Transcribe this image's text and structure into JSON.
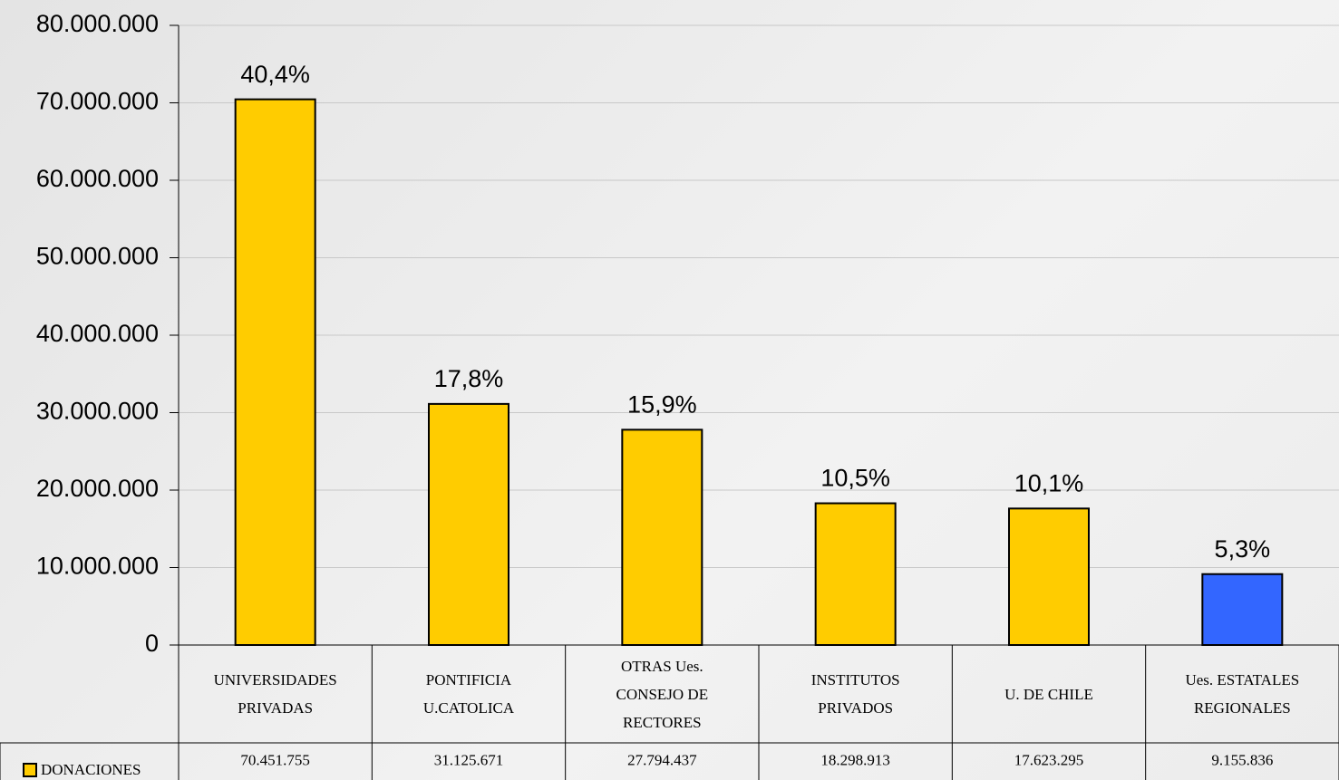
{
  "chart_data": {
    "type": "bar",
    "categories": [
      "UNIVERSIDADES PRIVADAS",
      "PONTIFICIA U.CATOLICA",
      "OTRAS Ues. CONSEJO DE RECTORES",
      "INSTITUTOS PRIVADOS",
      "U. DE CHILE",
      "Ues. ESTATALES REGIONALES"
    ],
    "series": [
      {
        "name": "DONACIONES",
        "color": "#ffcc00",
        "values": [
          70451755,
          31125671,
          27794437,
          18298913,
          17623295,
          9155836
        ],
        "value_labels": [
          "70.451.755",
          "31.125.671",
          "27.794.437",
          "18.298.913",
          "17.623.295",
          "9.155.836"
        ],
        "share_labels": [
          "40,4%",
          "17,8%",
          "15,9%",
          "10,5%",
          "10,1%",
          "5,3%"
        ],
        "colors": [
          "#ffcc00",
          "#ffcc00",
          "#ffcc00",
          "#ffcc00",
          "#ffcc00",
          "#3366ff"
        ]
      }
    ],
    "ylim": [
      0,
      80000000
    ],
    "yticks": [
      0,
      {
        "value": 10000000,
        "label": "10.000.000"
      },
      {
        "value": 20000000,
        "label": "20.000.000"
      },
      {
        "value": 30000000,
        "label": "30.000.000"
      },
      {
        "value": 40000000,
        "label": "40.000.000"
      },
      {
        "value": 50000000,
        "label": "50.000.000"
      },
      {
        "value": 60000000,
        "label": "60.000.000"
      },
      {
        "value": 70000000,
        "label": "70.000.000"
      },
      {
        "value": 80000000,
        "label": "80.000.000"
      }
    ],
    "grid": true
  }
}
